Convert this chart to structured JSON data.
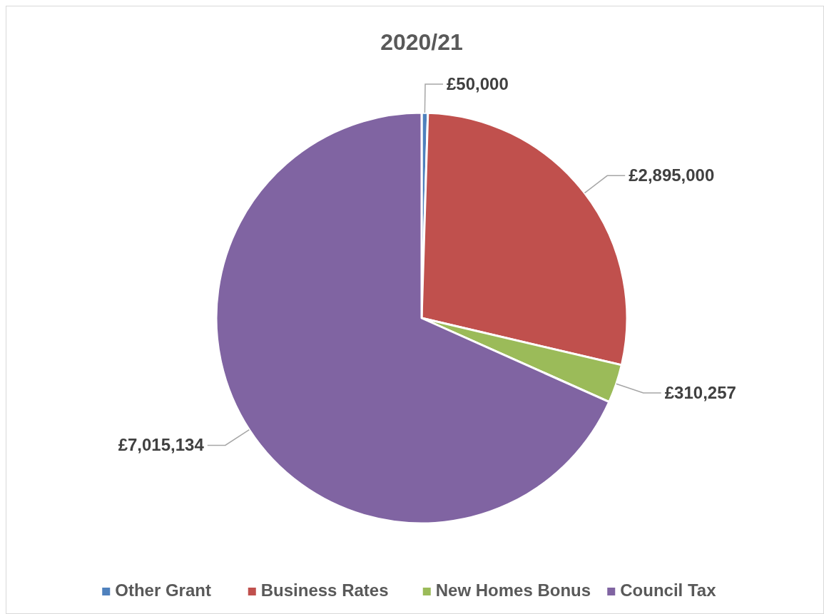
{
  "chart_data": {
    "type": "pie",
    "title": "2020/21",
    "categories": [
      "Other Grant",
      "Business Rates",
      "New Homes Bonus",
      "Council Tax"
    ],
    "values": [
      50000,
      2895000,
      310257,
      7015134
    ],
    "colors": [
      "#4f81bd",
      "#c0504d",
      "#9bbb59",
      "#8064a2"
    ],
    "value_labels": [
      "£50,000",
      "£2,895,000",
      "£310,257",
      "£7,015,134"
    ],
    "legend": "bottom"
  }
}
